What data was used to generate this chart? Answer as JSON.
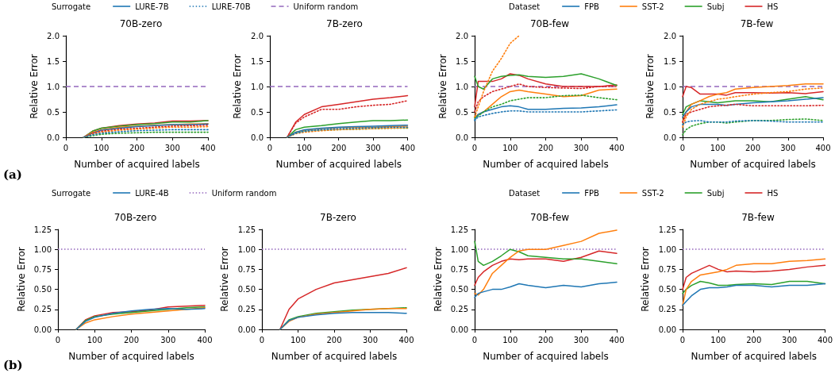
{
  "chart_data": [
    {
      "type": "line",
      "title": "70B-zero",
      "xlabel": "Number of acquired labels",
      "ylabel": "Relative Error",
      "legend": "top",
      "legend_title": "Surrogate",
      "annotations": [
        "(a)"
      ],
      "x": [
        50,
        75,
        100,
        150,
        200,
        250,
        300,
        350,
        400
      ],
      "xlim": [
        0,
        400
      ],
      "xticks": [
        0,
        100,
        200,
        300,
        400
      ],
      "ylim": [
        0,
        2
      ],
      "yticks": [
        {
          "value": 0,
          "label": "0.0"
        },
        {
          "value": 0.5,
          "label": "0.5"
        },
        {
          "value": 1,
          "label": "1.0"
        },
        {
          "value": 1.5,
          "label": "1.5"
        },
        {
          "value": 2,
          "label": "2.0"
        }
      ],
      "series": [
        {
          "name": "LURE-7B",
          "color": "#1f77b4",
          "line_style": "solid",
          "values": [
            0,
            0.08,
            0.14,
            0.18,
            0.21,
            0.23,
            0.25,
            0.25,
            0.26
          ]
        },
        {
          "color": "#ff7f0e",
          "line_style": "solid",
          "values": [
            0,
            0.1,
            0.15,
            0.2,
            0.22,
            0.24,
            0.25,
            0.26,
            0.27
          ]
        },
        {
          "color": "#2ca02c",
          "line_style": "solid",
          "values": [
            0,
            0.12,
            0.18,
            0.22,
            0.25,
            0.27,
            0.3,
            0.3,
            0.33
          ]
        },
        {
          "color": "#d62728",
          "line_style": "solid",
          "values": [
            0,
            0.12,
            0.18,
            0.23,
            0.26,
            0.28,
            0.32,
            0.32,
            0.33
          ]
        },
        {
          "name": "LURE-70B",
          "color": "#1f77b4",
          "line_style": "dotted",
          "values": [
            0,
            0.05,
            0.08,
            0.11,
            0.13,
            0.14,
            0.15,
            0.15,
            0.15
          ]
        },
        {
          "color": "#ff7f0e",
          "line_style": "dotted",
          "values": [
            0,
            0.06,
            0.1,
            0.14,
            0.16,
            0.18,
            0.2,
            0.2,
            0.21
          ]
        },
        {
          "color": "#2ca02c",
          "line_style": "dotted",
          "values": [
            0,
            0.03,
            0.06,
            0.08,
            0.09,
            0.1,
            0.1,
            0.1,
            0.1
          ]
        },
        {
          "color": "#d62728",
          "line_style": "dotted",
          "values": [
            0,
            0.08,
            0.12,
            0.16,
            0.18,
            0.2,
            0.22,
            0.23,
            0.24
          ]
        }
      ],
      "ref_lines": [
        {
          "axis": "y",
          "value": 1,
          "label": "Uniform random",
          "color": "#9467bd",
          "line_style": "dashed"
        }
      ]
    },
    {
      "type": "line",
      "title": "7B-zero",
      "xlabel": "Number of acquired labels",
      "ylabel": "Relative Error",
      "x": [
        50,
        75,
        100,
        150,
        200,
        250,
        300,
        350,
        400
      ],
      "xlim": [
        0,
        400
      ],
      "xticks": [
        0,
        100,
        200,
        300,
        400
      ],
      "ylim": [
        0,
        2
      ],
      "yticks": [
        {
          "value": 0,
          "label": "0.0"
        },
        {
          "value": 0.5,
          "label": "0.5"
        },
        {
          "value": 1,
          "label": "1.0"
        },
        {
          "value": 1.5,
          "label": "1.5"
        },
        {
          "value": 2,
          "label": "2.0"
        }
      ],
      "series": [
        {
          "color": "#1f77b4",
          "line_style": "solid",
          "values": [
            0,
            0.1,
            0.15,
            0.18,
            0.2,
            0.21,
            0.22,
            0.23,
            0.24
          ]
        },
        {
          "color": "#ff7f0e",
          "line_style": "solid",
          "values": [
            0,
            0.1,
            0.14,
            0.17,
            0.19,
            0.2,
            0.2,
            0.21,
            0.22
          ]
        },
        {
          "color": "#2ca02c",
          "line_style": "solid",
          "values": [
            0,
            0.15,
            0.2,
            0.23,
            0.27,
            0.3,
            0.33,
            0.33,
            0.34
          ]
        },
        {
          "color": "#d62728",
          "line_style": "solid",
          "values": [
            0,
            0.3,
            0.45,
            0.6,
            0.65,
            0.7,
            0.75,
            0.78,
            0.82
          ]
        },
        {
          "color": "#1f77b4",
          "line_style": "dotted",
          "values": [
            0,
            0.08,
            0.12,
            0.15,
            0.17,
            0.18,
            0.19,
            0.2,
            0.2
          ]
        },
        {
          "color": "#ff7f0e",
          "line_style": "dotted",
          "values": [
            0,
            0.07,
            0.1,
            0.13,
            0.15,
            0.16,
            0.17,
            0.18,
            0.19
          ]
        },
        {
          "color": "#2ca02c",
          "line_style": "dotted",
          "values": [
            0,
            0.08,
            0.12,
            0.14,
            0.15,
            0.16,
            0.17,
            0.18,
            0.18
          ]
        },
        {
          "color": "#d62728",
          "line_style": "dotted",
          "values": [
            0,
            0.28,
            0.4,
            0.55,
            0.55,
            0.6,
            0.63,
            0.65,
            0.72
          ]
        }
      ],
      "ref_lines": [
        {
          "axis": "y",
          "value": 1,
          "color": "#9467bd",
          "line_style": "dashed"
        }
      ]
    },
    {
      "type": "line",
      "title": "70B-few",
      "xlabel": "Number of acquired labels",
      "ylabel": "Relative Error",
      "legend": "top",
      "legend_title": "Dataset",
      "x": [
        0,
        10,
        25,
        50,
        75,
        100,
        125,
        150,
        200,
        250,
        300,
        350,
        400
      ],
      "xlim": [
        0,
        400
      ],
      "xticks": [
        0,
        100,
        200,
        300,
        400
      ],
      "ylim": [
        0,
        2
      ],
      "yticks": [
        {
          "value": 0,
          "label": "0.0"
        },
        {
          "value": 0.5,
          "label": "0.5"
        },
        {
          "value": 1,
          "label": "1.0"
        },
        {
          "value": 1.5,
          "label": "1.5"
        },
        {
          "value": 2,
          "label": "2.0"
        }
      ],
      "series": [
        {
          "name": "FPB",
          "color": "#1f77b4",
          "line_style": "solid",
          "values": [
            0.35,
            0.45,
            0.5,
            0.55,
            0.6,
            0.62,
            0.6,
            0.55,
            0.55,
            0.57,
            0.58,
            0.6,
            0.64
          ]
        },
        {
          "name": "SST-2",
          "color": "#ff7f0e",
          "line_style": "solid",
          "values": [
            0.4,
            0.45,
            0.5,
            0.65,
            0.8,
            0.9,
            0.93,
            0.9,
            0.85,
            0.8,
            0.82,
            0.93,
            0.95
          ]
        },
        {
          "name": "Subj",
          "color": "#2ca02c",
          "line_style": "solid",
          "values": [
            1.2,
            1.0,
            0.95,
            1.15,
            1.2,
            1.22,
            1.23,
            1.2,
            1.18,
            1.2,
            1.25,
            1.15,
            1.02
          ]
        },
        {
          "name": "HS",
          "color": "#d62728",
          "line_style": "solid",
          "values": [
            0.6,
            1.1,
            1.1,
            1.1,
            1.15,
            1.25,
            1.22,
            1.15,
            1.05,
            1.0,
            1.0,
            1.0,
            1.03
          ]
        },
        {
          "color": "#1f77b4",
          "line_style": "dotted",
          "values": [
            0.33,
            0.4,
            0.43,
            0.47,
            0.5,
            0.52,
            0.52,
            0.5,
            0.5,
            0.5,
            0.5,
            0.52,
            0.54
          ]
        },
        {
          "color": "#ff7f0e",
          "line_style": "dotted",
          "values": [
            0.4,
            0.6,
            0.9,
            1.3,
            1.55,
            1.85,
            2.0,
            null,
            null,
            null,
            null,
            null,
            null
          ]
        },
        {
          "color": "#2ca02c",
          "line_style": "dotted",
          "values": [
            0.38,
            0.42,
            0.5,
            0.6,
            0.65,
            0.72,
            0.75,
            0.78,
            0.78,
            0.82,
            0.83,
            0.78,
            0.74
          ]
        },
        {
          "color": "#d62728",
          "line_style": "dotted",
          "values": [
            0.5,
            0.7,
            0.8,
            0.9,
            0.95,
            1.0,
            1.05,
            1.0,
            0.98,
            0.97,
            0.96,
            1.0,
            1.0
          ]
        }
      ],
      "ref_lines": [
        {
          "axis": "y",
          "value": 1,
          "color": "#9467bd",
          "line_style": "dashed"
        }
      ]
    },
    {
      "type": "line",
      "title": "7B-few",
      "xlabel": "Number of acquired labels",
      "ylabel": "Relative Error",
      "x": [
        0,
        10,
        25,
        50,
        75,
        100,
        125,
        150,
        200,
        250,
        300,
        350,
        400
      ],
      "xlim": [
        0,
        400
      ],
      "xticks": [
        0,
        100,
        200,
        300,
        400
      ],
      "ylim": [
        0,
        2
      ],
      "yticks": [
        {
          "value": 0,
          "label": "0.0"
        },
        {
          "value": 0.5,
          "label": "0.5"
        },
        {
          "value": 1,
          "label": "1.0"
        },
        {
          "value": 1.5,
          "label": "1.5"
        },
        {
          "value": 2,
          "label": "2.0"
        }
      ],
      "series": [
        {
          "color": "#1f77b4",
          "line_style": "solid",
          "values": [
            0.4,
            0.5,
            0.6,
            0.65,
            0.65,
            0.65,
            0.63,
            0.65,
            0.68,
            0.7,
            0.72,
            0.75,
            0.78
          ]
        },
        {
          "color": "#ff7f0e",
          "line_style": "solid",
          "values": [
            0.3,
            0.5,
            0.65,
            0.72,
            0.8,
            0.85,
            0.88,
            0.95,
            0.98,
            1.0,
            1.02,
            1.05,
            1.05
          ]
        },
        {
          "color": "#2ca02c",
          "line_style": "solid",
          "values": [
            0.45,
            0.6,
            0.65,
            0.72,
            0.7,
            0.68,
            0.7,
            0.72,
            0.72,
            0.7,
            0.75,
            0.8,
            0.74
          ]
        },
        {
          "color": "#d62728",
          "line_style": "solid",
          "values": [
            0.8,
            1.0,
            0.98,
            0.85,
            0.85,
            0.85,
            0.83,
            0.88,
            0.88,
            0.87,
            0.88,
            0.86,
            0.9
          ]
        },
        {
          "color": "#1f77b4",
          "line_style": "dotted",
          "values": [
            0.25,
            0.3,
            0.32,
            0.33,
            0.3,
            0.3,
            0.3,
            0.32,
            0.33,
            0.32,
            0.3,
            0.3,
            0.3
          ]
        },
        {
          "color": "#ff7f0e",
          "line_style": "dotted",
          "values": [
            0.2,
            0.4,
            0.55,
            0.65,
            0.7,
            0.75,
            0.77,
            0.8,
            0.85,
            0.88,
            0.9,
            0.95,
            0.97
          ]
        },
        {
          "color": "#2ca02c",
          "line_style": "dotted",
          "values": [
            0.05,
            0.15,
            0.22,
            0.27,
            0.3,
            0.3,
            0.28,
            0.3,
            0.33,
            0.33,
            0.35,
            0.36,
            0.33
          ]
        },
        {
          "color": "#d62728",
          "line_style": "dotted",
          "values": [
            0.3,
            0.45,
            0.5,
            0.55,
            0.6,
            0.62,
            0.63,
            0.65,
            0.62,
            0.62,
            0.62,
            0.62,
            0.63
          ]
        }
      ],
      "ref_lines": [
        {
          "axis": "y",
          "value": 1,
          "color": "#9467bd",
          "line_style": "dashed"
        }
      ]
    },
    {
      "type": "line",
      "title": "70B-zero",
      "xlabel": "Number of acquired labels",
      "ylabel": "Relative Error",
      "legend": "top",
      "legend_title": "Surrogate",
      "annotations": [
        "(b)"
      ],
      "x": [
        50,
        75,
        100,
        150,
        200,
        250,
        300,
        350,
        400
      ],
      "xlim": [
        0,
        400
      ],
      "xticks": [
        0,
        100,
        200,
        300,
        400
      ],
      "ylim": [
        0,
        1.25
      ],
      "yticks": [
        {
          "value": 0,
          "label": "0.00"
        },
        {
          "value": 0.25,
          "label": "0.25"
        },
        {
          "value": 0.5,
          "label": "0.50"
        },
        {
          "value": 0.75,
          "label": "0.75"
        },
        {
          "value": 1,
          "label": "1.00"
        },
        {
          "value": 1.25,
          "label": "1.25"
        }
      ],
      "series": [
        {
          "name": "LURE-4B",
          "color": "#1f77b4",
          "line_style": "solid",
          "values": [
            0,
            0.1,
            0.15,
            0.2,
            0.23,
            0.25,
            0.26,
            0.25,
            0.26
          ]
        },
        {
          "color": "#ff7f0e",
          "line_style": "solid",
          "values": [
            0,
            0.08,
            0.12,
            0.16,
            0.19,
            0.21,
            0.23,
            0.25,
            0.27
          ]
        },
        {
          "color": "#2ca02c",
          "line_style": "solid",
          "values": [
            0,
            0.11,
            0.16,
            0.19,
            0.21,
            0.23,
            0.25,
            0.27,
            0.28
          ]
        },
        {
          "color": "#d62728",
          "line_style": "solid",
          "values": [
            0,
            0.12,
            0.17,
            0.21,
            0.22,
            0.24,
            0.28,
            0.29,
            0.3
          ]
        }
      ],
      "ref_lines": [
        {
          "axis": "y",
          "value": 1,
          "label": "Uniform random",
          "color": "#9467bd",
          "line_style": "dotted"
        }
      ]
    },
    {
      "type": "line",
      "title": "7B-zero",
      "xlabel": "Number of acquired labels",
      "ylabel": "Relative Error",
      "x": [
        50,
        75,
        100,
        150,
        200,
        250,
        300,
        350,
        400
      ],
      "xlim": [
        0,
        400
      ],
      "xticks": [
        0,
        100,
        200,
        300,
        400
      ],
      "ylim": [
        0,
        1.25
      ],
      "yticks": [
        {
          "value": 0,
          "label": "0.00"
        },
        {
          "value": 0.25,
          "label": "0.25"
        },
        {
          "value": 0.5,
          "label": "0.50"
        },
        {
          "value": 0.75,
          "label": "0.75"
        },
        {
          "value": 1,
          "label": "1.00"
        },
        {
          "value": 1.25,
          "label": "1.25"
        }
      ],
      "series": [
        {
          "color": "#1f77b4",
          "line_style": "solid",
          "values": [
            0,
            0.11,
            0.15,
            0.18,
            0.2,
            0.21,
            0.21,
            0.21,
            0.2
          ]
        },
        {
          "color": "#ff7f0e",
          "line_style": "solid",
          "values": [
            0,
            0.1,
            0.15,
            0.19,
            0.21,
            0.23,
            0.25,
            0.26,
            0.26
          ]
        },
        {
          "color": "#2ca02c",
          "line_style": "solid",
          "values": [
            0,
            0.12,
            0.16,
            0.2,
            0.22,
            0.24,
            0.25,
            0.26,
            0.27
          ]
        },
        {
          "color": "#d62728",
          "line_style": "solid",
          "values": [
            0,
            0.25,
            0.38,
            0.5,
            0.58,
            0.62,
            0.66,
            0.7,
            0.77
          ]
        }
      ],
      "ref_lines": [
        {
          "axis": "y",
          "value": 1,
          "color": "#9467bd",
          "line_style": "dotted"
        }
      ]
    },
    {
      "type": "line",
      "title": "70B-few",
      "xlabel": "Number of acquired labels",
      "ylabel": "Relative Error",
      "legend": "top",
      "legend_title": "Dataset",
      "x": [
        0,
        10,
        25,
        50,
        75,
        100,
        125,
        150,
        200,
        250,
        300,
        350,
        400
      ],
      "xlim": [
        0,
        400
      ],
      "xticks": [
        0,
        100,
        200,
        300,
        400
      ],
      "ylim": [
        0,
        1.25
      ],
      "yticks": [
        {
          "value": 0,
          "label": "0.00"
        },
        {
          "value": 0.25,
          "label": "0.25"
        },
        {
          "value": 0.5,
          "label": "0.50"
        },
        {
          "value": 0.75,
          "label": "0.75"
        },
        {
          "value": 1,
          "label": "1.00"
        },
        {
          "value": 1.25,
          "label": "1.25"
        }
      ],
      "series": [
        {
          "name": "FPB",
          "color": "#1f77b4",
          "line_style": "solid",
          "values": [
            0.4,
            0.45,
            0.47,
            0.5,
            0.5,
            0.53,
            0.57,
            0.55,
            0.52,
            0.55,
            0.53,
            0.57,
            0.59
          ]
        },
        {
          "name": "SST-2",
          "color": "#ff7f0e",
          "line_style": "solid",
          "values": [
            0.45,
            0.43,
            0.5,
            0.7,
            0.8,
            0.9,
            0.98,
            1.0,
            1.0,
            1.05,
            1.1,
            1.2,
            1.24
          ]
        },
        {
          "name": "Subj",
          "color": "#2ca02c",
          "line_style": "solid",
          "values": [
            1.1,
            0.85,
            0.8,
            0.85,
            0.92,
            1.0,
            0.97,
            0.92,
            0.9,
            0.88,
            0.88,
            0.85,
            0.82
          ]
        },
        {
          "name": "HS",
          "color": "#d62728",
          "line_style": "solid",
          "values": [
            0.55,
            0.65,
            0.72,
            0.8,
            0.85,
            0.88,
            0.87,
            0.88,
            0.88,
            0.85,
            0.9,
            0.98,
            0.95
          ]
        }
      ],
      "ref_lines": [
        {
          "axis": "y",
          "value": 1,
          "color": "#9467bd",
          "line_style": "dotted"
        }
      ]
    },
    {
      "type": "line",
      "title": "7B-few",
      "xlabel": "Number of acquired labels",
      "ylabel": "Relative Error",
      "x": [
        0,
        10,
        25,
        50,
        75,
        100,
        125,
        150,
        200,
        250,
        300,
        350,
        400
      ],
      "xlim": [
        0,
        400
      ],
      "xticks": [
        0,
        100,
        200,
        300,
        400
      ],
      "ylim": [
        0,
        1.25
      ],
      "yticks": [
        {
          "value": 0,
          "label": "0.00"
        },
        {
          "value": 0.25,
          "label": "0.25"
        },
        {
          "value": 0.5,
          "label": "0.50"
        },
        {
          "value": 0.75,
          "label": "0.75"
        },
        {
          "value": 1,
          "label": "1.00"
        },
        {
          "value": 1.25,
          "label": "1.25"
        }
      ],
      "series": [
        {
          "color": "#1f77b4",
          "line_style": "solid",
          "values": [
            0.3,
            0.35,
            0.42,
            0.5,
            0.52,
            0.52,
            0.53,
            0.55,
            0.55,
            0.53,
            0.55,
            0.55,
            0.57
          ]
        },
        {
          "color": "#ff7f0e",
          "line_style": "solid",
          "values": [
            0.3,
            0.5,
            0.6,
            0.68,
            0.7,
            0.72,
            0.75,
            0.8,
            0.82,
            0.82,
            0.85,
            0.86,
            0.88
          ]
        },
        {
          "color": "#2ca02c",
          "line_style": "solid",
          "values": [
            0.45,
            0.5,
            0.55,
            0.6,
            0.58,
            0.55,
            0.55,
            0.56,
            0.57,
            0.56,
            0.6,
            0.6,
            0.57
          ]
        },
        {
          "color": "#d62728",
          "line_style": "solid",
          "values": [
            0.5,
            0.65,
            0.7,
            0.75,
            0.8,
            0.75,
            0.72,
            0.73,
            0.72,
            0.73,
            0.75,
            0.78,
            0.8
          ]
        }
      ],
      "ref_lines": [
        {
          "axis": "y",
          "value": 1,
          "color": "#9467bd",
          "line_style": "dotted"
        }
      ]
    }
  ]
}
